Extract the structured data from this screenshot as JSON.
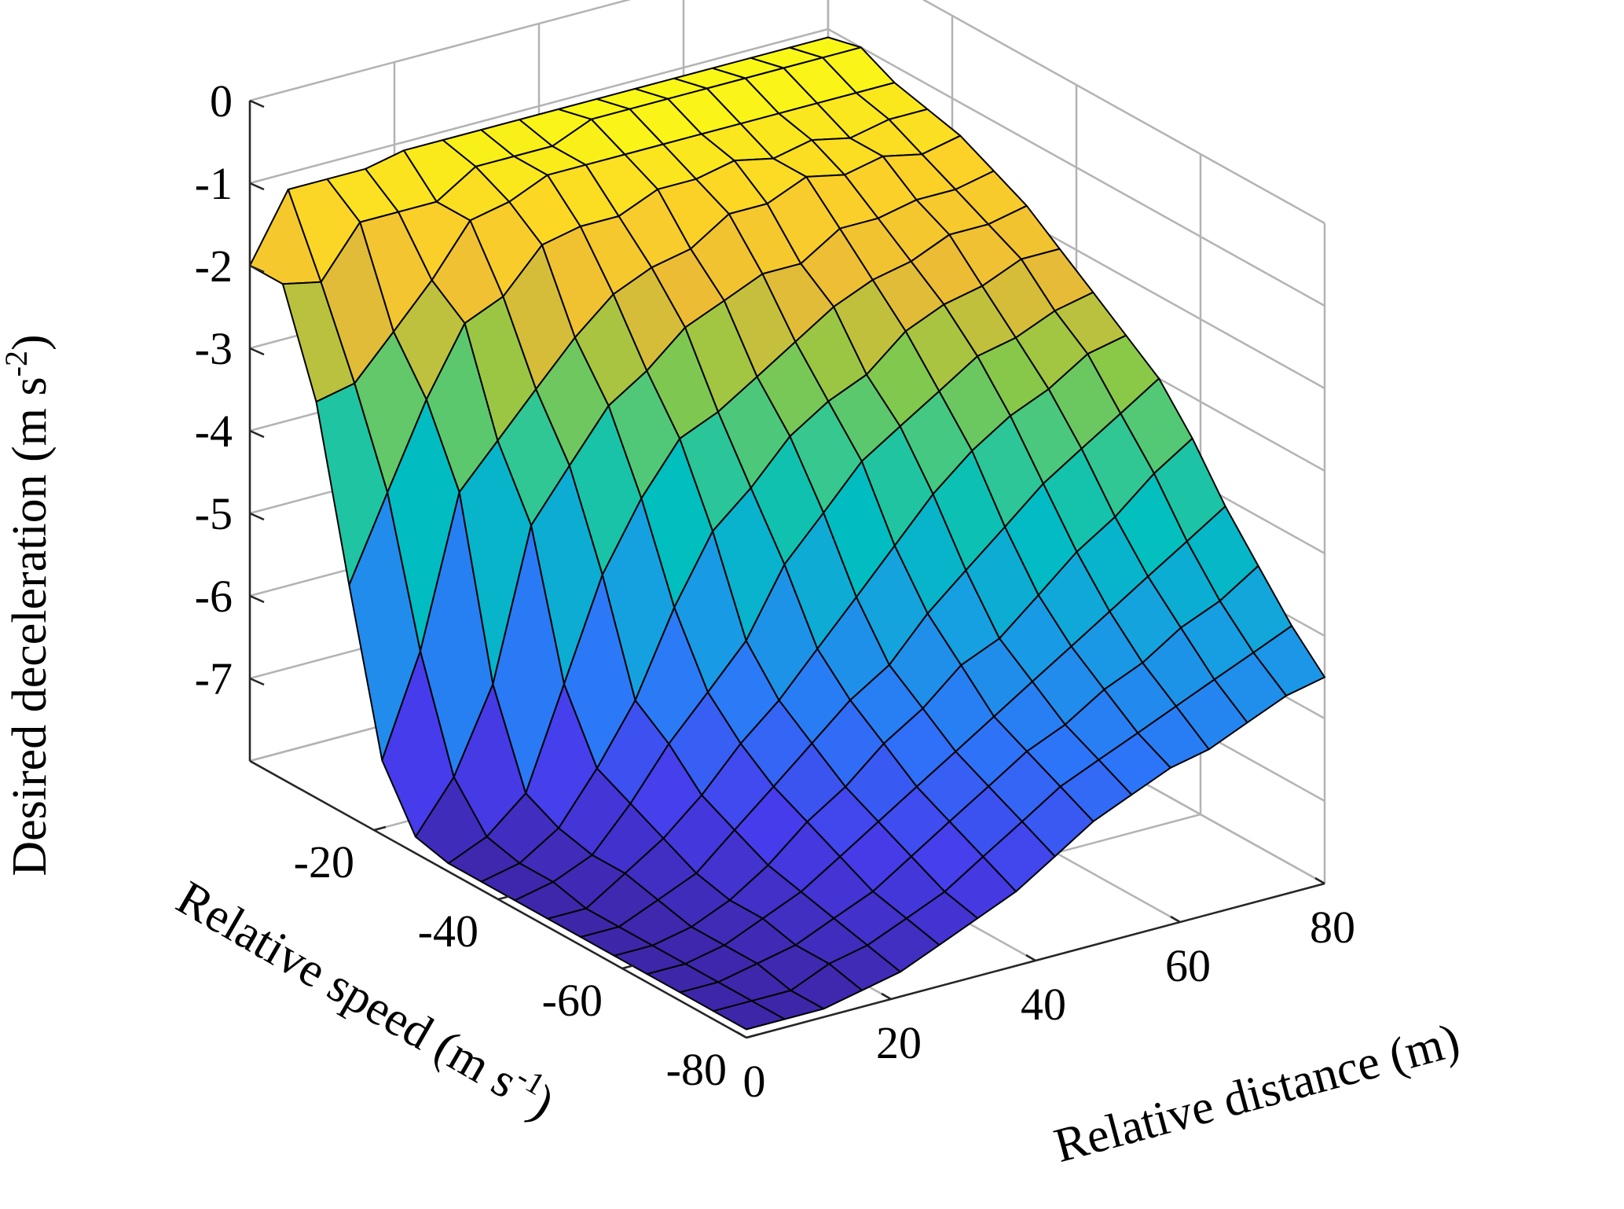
{
  "chart_data": {
    "type": "surface",
    "title": "",
    "xlabel": "Relative distance (m)",
    "ylabel": "Relative speed (m s-1)",
    "zlabel": "Desired deceleration (m s-2)",
    "xlabel_parts": {
      "base": "Relative distance (m)"
    },
    "ylabel_parts": {
      "base": "Relative speed (m s",
      "exp": "-1",
      "close": ")"
    },
    "zlabel_parts": {
      "base": "Desired deceleration (m s",
      "exp": "-2",
      "close": ")"
    },
    "x_ticks": [
      "0",
      "20",
      "40",
      "60",
      "80"
    ],
    "y_ticks": [
      "-20",
      "-40",
      "-60",
      "-80"
    ],
    "z_ticks": [
      "-1",
      "-2",
      "-3",
      "-4",
      "-5",
      "-6",
      "-7",
      "0"
    ],
    "xlim": [
      0,
      80
    ],
    "ylim": [
      -80,
      0
    ],
    "zlim": [
      -8,
      0
    ],
    "colormap": "parula",
    "grid": true,
    "x": [
      0,
      5.3,
      10.7,
      16,
      21.3,
      26.7,
      32,
      37.3,
      42.7,
      48,
      53.3,
      58.7,
      64,
      69.3,
      74.7,
      80
    ],
    "y": [
      0,
      -5.3,
      -10.7,
      -16,
      -21.3,
      -26.7,
      -32,
      -37.3,
      -42.7,
      -48,
      -53.3,
      -58.7,
      -64,
      -69.3,
      -74.7,
      -80
    ],
    "z": [
      [
        -2.0,
        -1.2,
        -1.2,
        -1.2,
        -1.1,
        -1.1,
        -1.1,
        -1.1,
        -1.1,
        -1.1,
        -1.1,
        -1.1,
        -1.1,
        -1.1,
        -1.1,
        -1.1
      ],
      [
        -2.0,
        -2.1,
        -1.5,
        -1.5,
        -1.5,
        -1.2,
        -1.2,
        -1.2,
        -1.0,
        -1.0,
        -1.0,
        -1.0,
        -1.0,
        -1.0,
        -1.0,
        -1.0
      ],
      [
        -3.2,
        -3.1,
        -2.6,
        -2.1,
        -1.5,
        -1.4,
        -1.2,
        -1.2,
        -1.2,
        -1.2,
        -1.2,
        -1.2,
        -1.2,
        -1.2,
        -1.2,
        -1.2
      ],
      [
        -5.2,
        -4.2,
        -3.2,
        -2.4,
        -2.2,
        -1.7,
        -1.6,
        -1.6,
        -1.4,
        -1.4,
        -1.3,
        -1.4,
        -1.3,
        -1.4,
        -1.3,
        -1.3
      ],
      [
        -7.1,
        -5.9,
        -4.1,
        -3.6,
        -3.1,
        -2.6,
        -2.2,
        -2.0,
        -1.9,
        -1.6,
        -1.6,
        -1.4,
        -1.5,
        -1.4,
        -1.5,
        -1.4
      ],
      [
        -7.8,
        -7.2,
        -6.2,
        -4.4,
        -3.8,
        -3.2,
        -2.9,
        -2.5,
        -2.3,
        -2.1,
        -2.1,
        -1.8,
        -1.8,
        -1.7,
        -1.7,
        -1.6
      ],
      [
        -7.9,
        -7.7,
        -7.3,
        -6.1,
        -4.9,
        -4.1,
        -3.5,
        -3.3,
        -3.0,
        -2.7,
        -2.4,
        -2.2,
        -2.1,
        -1.9,
        -1.9,
        -1.8
      ],
      [
        -7.9,
        -7.8,
        -7.5,
        -6.9,
        -6.2,
        -5.2,
        -4.4,
        -4.0,
        -3.5,
        -3.2,
        -3.0,
        -2.6,
        -2.4,
        -2.3,
        -2.1,
        -2.1
      ],
      [
        -7.9,
        -7.8,
        -7.6,
        -7.1,
        -6.5,
        -6.0,
        -5.5,
        -4.7,
        -4.2,
        -3.7,
        -3.4,
        -3.1,
        -2.8,
        -2.7,
        -2.5,
        -2.4
      ],
      [
        -7.9,
        -7.9,
        -7.6,
        -7.3,
        -6.9,
        -6.4,
        -6.0,
        -5.5,
        -5.0,
        -4.5,
        -4.0,
        -3.6,
        -3.3,
        -3.1,
        -2.8,
        -2.7
      ],
      [
        -7.9,
        -7.9,
        -7.7,
        -7.5,
        -7.1,
        -6.7,
        -6.3,
        -5.9,
        -5.6,
        -5.1,
        -4.7,
        -4.3,
        -3.9,
        -3.6,
        -3.3,
        -3.0
      ],
      [
        -7.9,
        -7.9,
        -7.8,
        -7.6,
        -7.3,
        -6.9,
        -6.6,
        -6.2,
        -5.9,
        -5.5,
        -5.3,
        -4.9,
        -4.5,
        -4.2,
        -3.8,
        -3.5
      ],
      [
        -7.9,
        -7.9,
        -7.8,
        -7.6,
        -7.4,
        -7.1,
        -6.8,
        -6.5,
        -6.2,
        -5.9,
        -5.6,
        -5.3,
        -5.0,
        -4.7,
        -4.4,
        -4.1
      ],
      [
        -7.9,
        -7.9,
        -7.8,
        -7.7,
        -7.5,
        -7.3,
        -7.0,
        -6.7,
        -6.4,
        -6.1,
        -5.9,
        -5.6,
        -5.4,
        -5.1,
        -4.9,
        -4.6
      ],
      [
        -7.9,
        -7.9,
        -7.9,
        -7.7,
        -7.6,
        -7.4,
        -7.2,
        -6.9,
        -6.6,
        -6.3,
        -6.1,
        -5.9,
        -5.7,
        -5.5,
        -5.3,
        -5.1
      ],
      [
        -7.9,
        -7.9,
        -7.9,
        -7.8,
        -7.7,
        -7.5,
        -7.3,
        -7.1,
        -6.8,
        -6.5,
        -6.3,
        -6.1,
        -6.0,
        -5.8,
        -5.6,
        -5.5
      ]
    ]
  }
}
